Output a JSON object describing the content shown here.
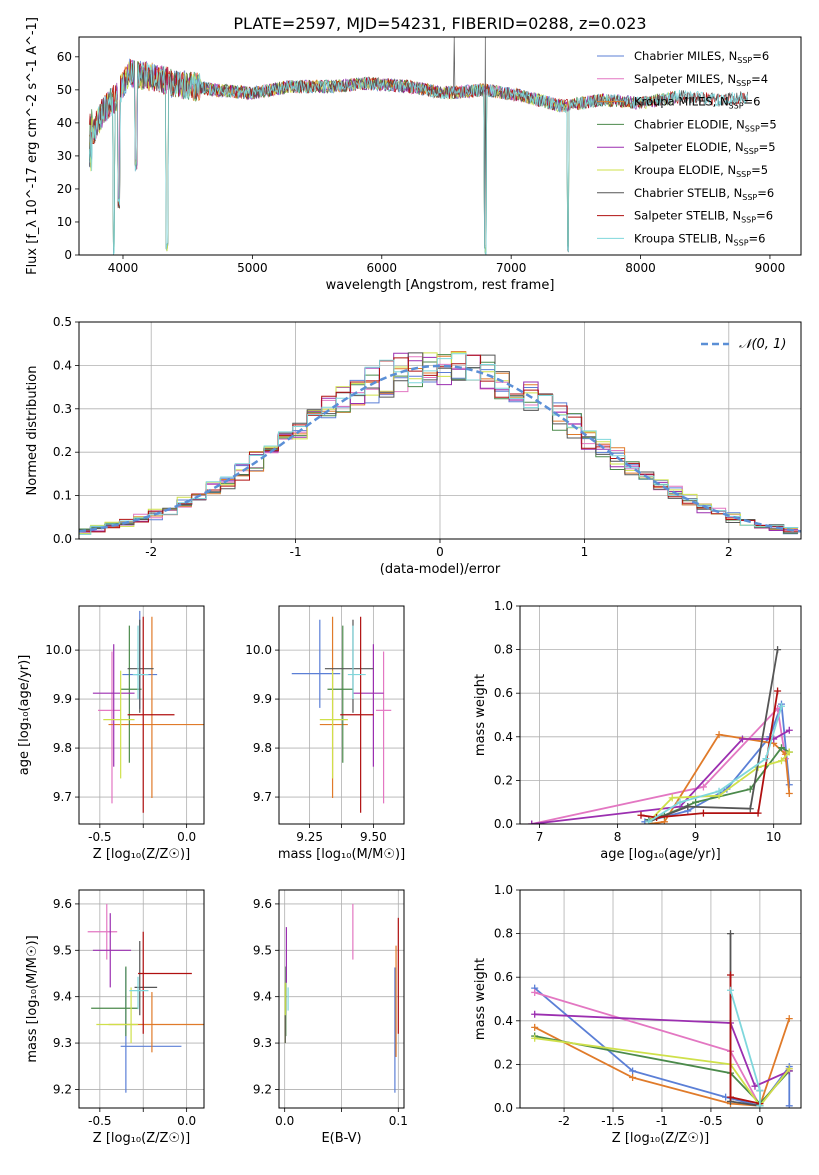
{
  "figure": {
    "title": "PLATE=2597, MJD=54231, FIBERID=0288, z=0.023"
  },
  "models": [
    {
      "label": "Chabrier MILES, N_SSP=6",
      "imf": "Chabrier",
      "lib": "MILES",
      "nssp": 6,
      "color": "#5b7fd6"
    },
    {
      "label": "Salpeter MILES, N_SSP=4",
      "imf": "Salpeter",
      "lib": "MILES",
      "nssp": 4,
      "color": "#e377c2"
    },
    {
      "label": "Kroupa MILES, N_SSP=6",
      "imf": "Kroupa",
      "lib": "MILES",
      "nssp": 6,
      "color": "#e07b2a"
    },
    {
      "label": "Chabrier ELODIE, N_SSP=5",
      "imf": "Chabrier",
      "lib": "ELODIE",
      "nssp": 5,
      "color": "#4b8a4b"
    },
    {
      "label": "Salpeter ELODIE, N_SSP=5",
      "imf": "Salpeter",
      "lib": "ELODIE",
      "nssp": 5,
      "color": "#9b2fb0"
    },
    {
      "label": "Kroupa ELODIE, N_SSP=5",
      "imf": "Kroupa",
      "lib": "ELODIE",
      "nssp": 5,
      "color": "#cfe04a"
    },
    {
      "label": "Chabrier STELIB, N_SSP=6",
      "imf": "Chabrier",
      "lib": "STELIB",
      "nssp": 6,
      "color": "#555555"
    },
    {
      "label": "Salpeter STELIB, N_SSP=6",
      "imf": "Salpeter",
      "lib": "STELIB",
      "nssp": 6,
      "color": "#b01010"
    },
    {
      "label": "Kroupa STELIB, N_SSP=6",
      "imf": "Kroupa",
      "lib": "STELIB",
      "nssp": 6,
      "color": "#7fd7dc"
    }
  ],
  "chart_data": [
    {
      "id": "spectrum",
      "type": "line",
      "xlabel": "wavelength [Angstrom, rest frame]",
      "ylabel": "Flux [f_λ 10^-17 erg cm^-2 s^-1 A^-1]",
      "xlim": [
        3660,
        9240
      ],
      "ylim": [
        0,
        66
      ],
      "xticks": [
        4000,
        5000,
        6000,
        7000,
        8000,
        9000
      ],
      "yticks": [
        0,
        10,
        20,
        30,
        40,
        50,
        60
      ],
      "grid": false,
      "legend": "top-right",
      "continuum_x": [
        3780,
        3850,
        3950,
        4050,
        4200,
        4400,
        4700,
        5000,
        5300,
        5600,
        5900,
        6200,
        6500,
        6800,
        7100,
        7400,
        7700,
        8000,
        8300,
        8600,
        8900
      ],
      "continuum_y": [
        38,
        44,
        48,
        55,
        54,
        52,
        50,
        49,
        51,
        51,
        52,
        51,
        49,
        50,
        48,
        45,
        47,
        46,
        48,
        47,
        48
      ],
      "dips": [
        {
          "x": 3930,
          "y": 0
        },
        {
          "x": 3968,
          "y": 14
        },
        {
          "x": 4101,
          "y": 25
        },
        {
          "x": 4340,
          "y": 0
        },
        {
          "x": 6800,
          "y": 0
        },
        {
          "x": 7440,
          "y": 0
        }
      ],
      "spikes": [
        {
          "x": 6560,
          "y": 66
        },
        {
          "x": 6800,
          "y": 66
        }
      ]
    },
    {
      "id": "residuals",
      "type": "histogram",
      "xlabel": "(data-model)/error",
      "ylabel": "Normed distribution",
      "xlim": [
        -2.5,
        2.5
      ],
      "ylim": [
        0,
        0.5
      ],
      "xticks": [
        -2,
        -1,
        0,
        1,
        2
      ],
      "yticks": [
        0.0,
        0.1,
        0.2,
        0.3,
        0.4,
        0.5
      ],
      "grid": true,
      "legend": "top-right",
      "reference": {
        "label": "𝒩(0, 1)",
        "mu": 0,
        "sigma": 1,
        "color": "#5b8fd6"
      }
    },
    {
      "id": "age-vs-Z",
      "type": "errorbar",
      "xlabel": "Z [log₁₀(Z/Z☉)]",
      "ylabel": "age  [log₁₀(age/yr)]",
      "xlim": [
        -0.62,
        0.1
      ],
      "ylim": [
        9.645,
        10.09
      ],
      "xticks": [
        -0.5,
        -0.25,
        0.0
      ],
      "yticks": [
        9.7,
        9.8,
        9.9,
        10.0
      ],
      "xtick_labels": [
        "-0.5",
        "",
        "0.0"
      ],
      "grid": true,
      "points": [
        {
          "x": -0.27,
          "y": 9.95,
          "xerr": [
            0.1,
            0.1
          ],
          "yerr": [
            0.07,
            0.13
          ]
        },
        {
          "x": -0.43,
          "y": 9.877,
          "xerr": [
            0.08,
            0.05
          ],
          "yerr": [
            0.19,
            0.12
          ]
        },
        {
          "x": -0.2,
          "y": 9.848,
          "xerr": [
            0.25,
            0.3
          ],
          "yerr": [
            0.15,
            0.22
          ]
        },
        {
          "x": -0.33,
          "y": 9.92,
          "xerr": [
            0.05,
            0.07
          ],
          "yerr": [
            0.15,
            0.13
          ]
        },
        {
          "x": -0.42,
          "y": 9.912,
          "xerr": [
            0.12,
            0.12
          ],
          "yerr": [
            0.15,
            0.1
          ]
        },
        {
          "x": -0.38,
          "y": 9.858,
          "xerr": [
            0.1,
            0.08
          ],
          "yerr": [
            0.12,
            0.1
          ]
        },
        {
          "x": -0.27,
          "y": 9.962,
          "xerr": [
            0.07,
            0.08
          ],
          "yerr": [
            0.09,
            0.1
          ]
        },
        {
          "x": -0.25,
          "y": 9.868,
          "xerr": [
            0.09,
            0.18
          ],
          "yerr": [
            0.2,
            0.2
          ]
        },
        {
          "x": -0.28,
          "y": 9.95,
          "xerr": [
            0.03,
            0.06
          ],
          "yerr": [
            0.05,
            0.1
          ]
        }
      ]
    },
    {
      "id": "age-vs-mass",
      "type": "errorbar",
      "xlabel": "mass [log₁₀(M/M☉)]",
      "ylabel": "",
      "xlim": [
        9.13,
        9.62
      ],
      "ylim": [
        9.645,
        10.09
      ],
      "xticks": [
        9.25,
        9.375,
        9.5
      ],
      "yticks": [
        9.7,
        9.8,
        9.9,
        10.0
      ],
      "xtick_labels": [
        "9.25",
        "",
        "9.50"
      ],
      "grid": true,
      "points": [
        {
          "x": 9.29,
          "y": 9.952,
          "xerr": [
            0.11,
            0.08
          ],
          "yerr": [
            0.07,
            0.11
          ]
        },
        {
          "x": 9.54,
          "y": 9.877,
          "xerr": [
            0.03,
            0.03
          ],
          "yerr": [
            0.19,
            0.12
          ]
        },
        {
          "x": 9.34,
          "y": 9.848,
          "xerr": [
            0.05,
            0.06
          ],
          "yerr": [
            0.15,
            0.22
          ]
        },
        {
          "x": 9.38,
          "y": 9.92,
          "xerr": [
            0.06,
            0.04
          ],
          "yerr": [
            0.15,
            0.13
          ]
        },
        {
          "x": 9.5,
          "y": 9.912,
          "xerr": [
            0.08,
            0.04
          ],
          "yerr": [
            0.15,
            0.1
          ]
        },
        {
          "x": 9.34,
          "y": 9.858,
          "xerr": [
            0.05,
            0.06
          ],
          "yerr": [
            0.12,
            0.1
          ]
        },
        {
          "x": 9.42,
          "y": 9.962,
          "xerr": [
            0.11,
            0.08
          ],
          "yerr": [
            0.09,
            0.1
          ]
        },
        {
          "x": 9.45,
          "y": 9.868,
          "xerr": [
            0.08,
            0.05
          ],
          "yerr": [
            0.2,
            0.2
          ]
        },
        {
          "x": 9.42,
          "y": 9.95,
          "xerr": [
            0.02,
            0.05
          ],
          "yerr": [
            0.05,
            0.1
          ]
        }
      ]
    },
    {
      "id": "mass-weight-vs-age",
      "type": "line",
      "xlabel": "age  [log₁₀(age/yr)]",
      "ylabel": "mass weight",
      "xlim": [
        6.75,
        10.35
      ],
      "ylim": [
        0,
        1.0
      ],
      "xticks": [
        7,
        8,
        9,
        10
      ],
      "yticks": [
        0.0,
        0.2,
        0.4,
        0.6,
        0.8,
        1.0
      ],
      "grid": true,
      "series": [
        {
          "x": [
            8.35,
            8.9,
            9.4,
            9.95,
            10.1,
            10.2
          ],
          "y": [
            0.01,
            0.06,
            0.16,
            0.4,
            0.55,
            0.18
          ]
        },
        {
          "x": [
            6.9,
            9.1,
            10.05,
            10.15
          ],
          "y": [
            0.0,
            0.17,
            0.53,
            0.3
          ]
        },
        {
          "x": [
            8.4,
            8.6,
            9.3,
            10.0,
            10.15,
            10.2
          ],
          "y": [
            0.0,
            0.01,
            0.41,
            0.37,
            0.32,
            0.14
          ]
        },
        {
          "x": [
            8.4,
            8.6,
            9.0,
            9.7,
            10.1,
            10.2
          ],
          "y": [
            0.02,
            0.04,
            0.1,
            0.16,
            0.35,
            0.33
          ]
        },
        {
          "x": [
            6.9,
            8.8,
            9.6,
            10.0,
            10.2
          ],
          "y": [
            0.0,
            0.08,
            0.39,
            0.39,
            0.43
          ]
        },
        {
          "x": [
            8.4,
            8.7,
            9.3,
            9.8,
            10.1,
            10.2
          ],
          "y": [
            0.01,
            0.12,
            0.13,
            0.26,
            0.29,
            0.33
          ]
        },
        {
          "x": [
            8.4,
            8.9,
            9.7,
            10.05
          ],
          "y": [
            0.01,
            0.08,
            0.07,
            0.8
          ]
        },
        {
          "x": [
            8.3,
            8.5,
            9.1,
            9.8,
            10.05
          ],
          "y": [
            0.04,
            0.03,
            0.05,
            0.05,
            0.61
          ]
        },
        {
          "x": [
            8.4,
            8.8,
            9.3,
            9.9,
            10.1
          ],
          "y": [
            0.01,
            0.1,
            0.15,
            0.3,
            0.54
          ]
        }
      ]
    },
    {
      "id": "mass-vs-Z",
      "type": "errorbar",
      "xlabel": "Z [log₁₀(Z/Z☉)]",
      "ylabel": "mass [log₁₀(M/M☉)]",
      "xlim": [
        -0.62,
        0.1
      ],
      "ylim": [
        9.16,
        9.63
      ],
      "xticks": [
        -0.5,
        -0.25,
        0.0
      ],
      "yticks": [
        9.2,
        9.3,
        9.4,
        9.5,
        9.6
      ],
      "xtick_labels": [
        "-0.5",
        "",
        "0.0"
      ],
      "grid": true,
      "points": [
        {
          "x": -0.35,
          "y": 9.293,
          "xerr": [
            0.03,
            0.32
          ],
          "yerr": [
            0.1,
            0.17
          ]
        },
        {
          "x": -0.46,
          "y": 9.54,
          "xerr": [
            0.11,
            0.06
          ],
          "yerr": [
            0.06,
            0.06
          ]
        },
        {
          "x": -0.2,
          "y": 9.34,
          "xerr": [
            0.25,
            0.3
          ],
          "yerr": [
            0.06,
            0.07
          ]
        },
        {
          "x": -0.35,
          "y": 9.375,
          "xerr": [
            0.2,
            0.07
          ],
          "yerr": [
            0.06,
            0.09
          ]
        },
        {
          "x": -0.44,
          "y": 9.5,
          "xerr": [
            0.1,
            0.12
          ],
          "yerr": [
            0.08,
            0.08
          ]
        },
        {
          "x": -0.32,
          "y": 9.34,
          "xerr": [
            0.2,
            0.04
          ],
          "yerr": [
            0.04,
            0.08
          ]
        },
        {
          "x": -0.27,
          "y": 9.42,
          "xerr": [
            0.03,
            0.1
          ],
          "yerr": [
            0.06,
            0.1
          ]
        },
        {
          "x": -0.25,
          "y": 9.45,
          "xerr": [
            0.03,
            0.28
          ],
          "yerr": [
            0.13,
            0.09
          ]
        },
        {
          "x": -0.28,
          "y": 9.413,
          "xerr": [
            0.05,
            0.06
          ],
          "yerr": [
            0.04,
            0.03
          ]
        }
      ]
    },
    {
      "id": "mass-vs-ebv",
      "type": "errorbar",
      "xlabel": "E(B-V)",
      "ylabel": "",
      "xlim": [
        -0.005,
        0.105
      ],
      "ylim": [
        9.16,
        9.63
      ],
      "xticks": [
        0.0,
        0.05,
        0.1
      ],
      "yticks": [
        9.2,
        9.3,
        9.4,
        9.5,
        9.6
      ],
      "xtick_labels": [
        "0.0",
        "",
        "0.1"
      ],
      "grid": true,
      "points": [
        {
          "x": 0.097,
          "y": 9.293,
          "xerr": [
            0,
            0
          ],
          "yerr": [
            0.1,
            0.17
          ]
        },
        {
          "x": 0.06,
          "y": 9.54,
          "xerr": [
            0,
            0
          ],
          "yerr": [
            0.06,
            0.06
          ]
        },
        {
          "x": 0.098,
          "y": 9.44,
          "xerr": [
            0,
            0
          ],
          "yerr": [
            0.17,
            0.07
          ]
        },
        {
          "x": 0.001,
          "y": 9.375,
          "xerr": [
            0,
            0
          ],
          "yerr": [
            0.06,
            0.09
          ]
        },
        {
          "x": 0.0015,
          "y": 9.49,
          "xerr": [
            0,
            0
          ],
          "yerr": [
            0.06,
            0.06
          ]
        },
        {
          "x": 0.0005,
          "y": 9.37,
          "xerr": [
            0,
            0
          ],
          "yerr": [
            0.07,
            0.06
          ]
        },
        {
          "x": 0.0005,
          "y": 9.33,
          "xerr": [
            0,
            0
          ],
          "yerr": [
            0.03,
            0.03
          ]
        },
        {
          "x": 0.1,
          "y": 9.45,
          "xerr": [
            0,
            0
          ],
          "yerr": [
            0.13,
            0.12
          ]
        },
        {
          "x": 0.003,
          "y": 9.39,
          "xerr": [
            0,
            0
          ],
          "yerr": [
            0.02,
            0.03
          ]
        }
      ]
    },
    {
      "id": "mass-weight-vs-Z",
      "type": "line",
      "xlabel": "Z [log₁₀(Z/Z☉)]",
      "ylabel": "mass weight",
      "xlim": [
        -2.45,
        0.42
      ],
      "ylim": [
        0,
        1.0
      ],
      "xticks": [
        -2.0,
        -1.5,
        -1.0,
        -0.5,
        0.0
      ],
      "yticks": [
        0.0,
        0.2,
        0.4,
        0.6,
        0.8,
        1.0
      ],
      "grid": true,
      "series": [
        {
          "x": [
            -2.3,
            -1.3,
            -0.35,
            0.0,
            0.3,
            0.3
          ],
          "y": [
            0.55,
            0.17,
            0.05,
            0.01,
            0.19,
            0.01
          ]
        },
        {
          "x": [
            -2.3,
            -0.3,
            0.0,
            0.3
          ],
          "y": [
            0.53,
            0.26,
            0.01,
            0.18
          ]
        },
        {
          "x": [
            -2.3,
            -1.3,
            -0.3,
            0.0,
            0.3
          ],
          "y": [
            0.37,
            0.14,
            0.02,
            0.01,
            0.41
          ]
        },
        {
          "x": [
            -2.3,
            -0.3,
            0.0,
            0.3
          ],
          "y": [
            0.33,
            0.16,
            0.02,
            0.17
          ]
        },
        {
          "x": [
            -2.3,
            -0.3,
            -0.05,
            0.3
          ],
          "y": [
            0.43,
            0.39,
            0.1,
            0.17
          ]
        },
        {
          "x": [
            -2.3,
            -0.3,
            0.0,
            0.3
          ],
          "y": [
            0.32,
            0.2,
            0.01,
            0.18
          ]
        },
        {
          "x": [
            -0.3,
            -0.3,
            0.0,
            0.0
          ],
          "y": [
            0.8,
            0.03,
            0.01,
            0.08
          ]
        },
        {
          "x": [
            -0.3,
            -0.3,
            0.0
          ],
          "y": [
            0.61,
            0.05,
            0.02
          ]
        },
        {
          "x": [
            -0.3,
            0.0,
            0.0
          ],
          "y": [
            0.54,
            0.08,
            0.01
          ]
        }
      ]
    }
  ]
}
